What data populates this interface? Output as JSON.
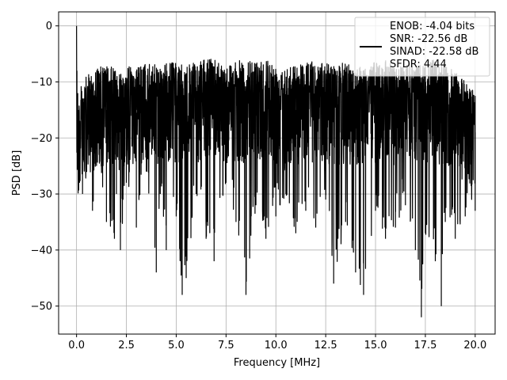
{
  "chart_data": {
    "type": "line",
    "title": "",
    "xlabel": "Frequency [MHz]",
    "ylabel": "PSD [dB]",
    "xlim": [
      -0.9,
      21.0
    ],
    "ylim": [
      -55,
      2.5
    ],
    "x_ticks": [
      0.0,
      2.5,
      5.0,
      7.5,
      10.0,
      12.5,
      15.0,
      17.5,
      20.0
    ],
    "x_tick_labels": [
      "0.0",
      "2.5",
      "5.0",
      "7.5",
      "10.0",
      "12.5",
      "15.0",
      "17.5",
      "20.0"
    ],
    "y_ticks": [
      0,
      -10,
      -20,
      -30,
      -40,
      -50
    ],
    "y_tick_labels": [
      "0",
      "−10",
      "−20",
      "−30",
      "−40",
      "−50"
    ],
    "grid": true,
    "legend_position": "top-right",
    "series": [
      {
        "name": "ENOB: -4.04 bits\nSNR: -22.56 dB\nSINAD: -22.58 dB\nSFDR: 4.44",
        "legend_lines": [
          "ENOB: -4.04 bits",
          "SNR: -22.56 dB",
          "SINAD: -22.58 dB",
          "SFDR: 4.44"
        ],
        "color": "#000000",
        "x": [
          0.0,
          0.02,
          0.04,
          0.06,
          0.08,
          0.1,
          0.15,
          0.2,
          0.3,
          0.5,
          0.8,
          1.0,
          1.5,
          1.9,
          2.0,
          2.2,
          2.5,
          3.0,
          3.5,
          4.0,
          4.2,
          4.5,
          5.0,
          5.3,
          5.5,
          6.0,
          6.5,
          6.9,
          7.5,
          8.0,
          8.5,
          9.0,
          9.5,
          10.0,
          10.5,
          11.0,
          11.5,
          12.0,
          12.5,
          12.9,
          13.5,
          14.0,
          14.4,
          15.0,
          15.5,
          16.0,
          16.5,
          17.0,
          17.3,
          17.5,
          18.0,
          18.3,
          18.5,
          19.0,
          19.5,
          20.0
        ],
        "y": [
          0.0,
          -8.0,
          -20.0,
          -12.0,
          -24.0,
          -15.0,
          -28.0,
          -18.0,
          -30.0,
          -22.0,
          -33.0,
          -25.0,
          -35.0,
          -38.0,
          -30.0,
          -40.0,
          -28.0,
          -36.0,
          -26.0,
          -44.0,
          -30.0,
          -40.0,
          -34.0,
          -48.0,
          -45.0,
          -30.0,
          -38.0,
          -42.0,
          -28.0,
          -35.0,
          -48.0,
          -32.0,
          -38.0,
          -34.0,
          -30.0,
          -37.0,
          -33.0,
          -36.0,
          -31.0,
          -46.0,
          -35.0,
          -44.0,
          -48.0,
          -33.0,
          -38.0,
          -36.0,
          -32.0,
          -40.0,
          -52.0,
          -37.0,
          -42.0,
          -50.0,
          -35.0,
          -38.0,
          -34.0,
          -33.0
        ],
        "envelope_top": [
          0.0,
          -6.0,
          -10.0,
          -12.0,
          -14.0,
          -13.0,
          -12.0,
          -11.0,
          -10.0,
          -9.0,
          -8.0,
          -7.5,
          -7.0,
          -7.5,
          -7.0,
          -8.0,
          -7.0,
          -7.5,
          -6.5,
          -7.0,
          -7.0,
          -6.5,
          -6.5,
          -7.0,
          -7.0,
          -6.5,
          -6.0,
          -5.5,
          -7.0,
          -6.0,
          -6.5,
          -6.0,
          -5.5,
          -7.0,
          -6.5,
          -7.0,
          -6.0,
          -6.5,
          -6.5,
          -7.0,
          -6.5,
          -7.0,
          -7.0,
          -6.5,
          -6.0,
          -7.0,
          -7.0,
          -6.5,
          -7.0,
          -6.5,
          -6.0,
          -7.0,
          -7.0,
          -8.0,
          -10.0,
          -11.0
        ]
      }
    ]
  }
}
